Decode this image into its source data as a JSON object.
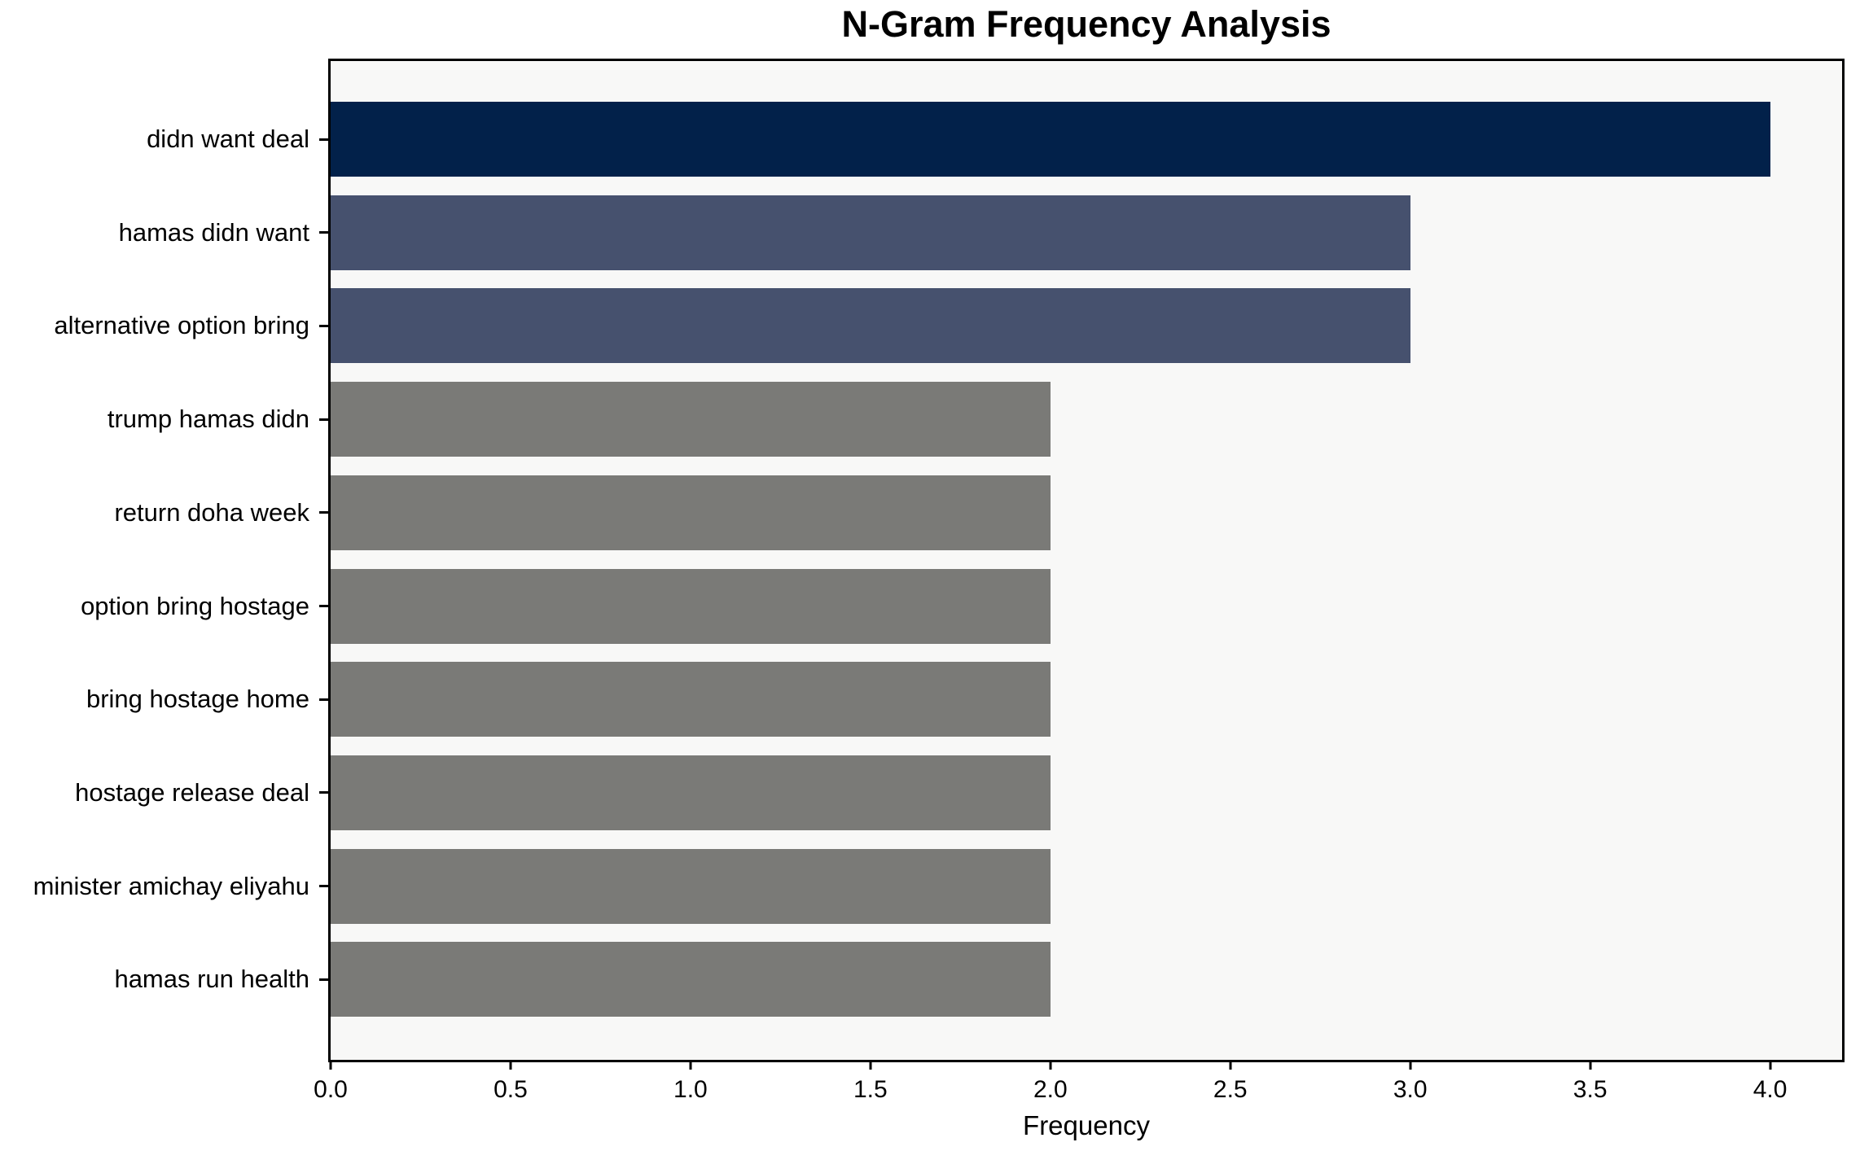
{
  "chart_data": {
    "type": "bar",
    "orientation": "horizontal",
    "title": "N-Gram Frequency Analysis",
    "xlabel": "Frequency",
    "ylabel": "",
    "categories": [
      "didn want deal",
      "hamas didn want",
      "alternative option bring",
      "trump hamas didn",
      "return doha week",
      "option bring hostage",
      "bring hostage home",
      "hostage release deal",
      "minister amichay eliyahu",
      "hamas run health"
    ],
    "values": [
      4,
      3,
      3,
      2,
      2,
      2,
      2,
      2,
      2,
      2
    ],
    "bar_colors": [
      "#02214A",
      "#46516E",
      "#46516E",
      "#7A7A77",
      "#7A7A77",
      "#7A7A77",
      "#7A7A77",
      "#7A7A77",
      "#7A7A77",
      "#7A7A77"
    ],
    "xlim": [
      0,
      4.2
    ],
    "xticks": [
      {
        "value": 0.0,
        "label": "0.0"
      },
      {
        "value": 0.5,
        "label": "0.5"
      },
      {
        "value": 1.0,
        "label": "1.0"
      },
      {
        "value": 1.5,
        "label": "1.5"
      },
      {
        "value": 2.0,
        "label": "2.0"
      },
      {
        "value": 2.5,
        "label": "2.5"
      },
      {
        "value": 3.0,
        "label": "3.0"
      },
      {
        "value": 3.5,
        "label": "3.5"
      },
      {
        "value": 4.0,
        "label": "4.0"
      }
    ],
    "grid": false,
    "legend": null,
    "plot_background": "#f8f8f7",
    "figure_background": "#ffffff"
  }
}
